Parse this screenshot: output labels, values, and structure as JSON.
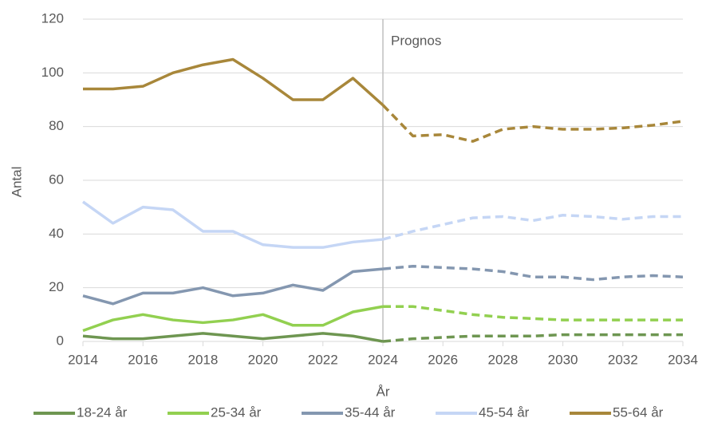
{
  "chart_data": {
    "type": "line",
    "x": [
      2014,
      2015,
      2016,
      2017,
      2018,
      2019,
      2020,
      2021,
      2022,
      2023,
      2024,
      2025,
      2026,
      2027,
      2028,
      2029,
      2030,
      2031,
      2032,
      2033,
      2034
    ],
    "xlim": [
      2014,
      2034
    ],
    "xticks": [
      2014,
      2016,
      2018,
      2020,
      2022,
      2024,
      2026,
      2028,
      2030,
      2032,
      2034
    ],
    "ylim": [
      0,
      120
    ],
    "yticks": [
      0,
      20,
      40,
      60,
      80,
      100,
      120
    ],
    "x_label": "År",
    "y_label": "Antal",
    "grid": true,
    "legend": "bottom",
    "annotation": {
      "text": "Prognos",
      "x": 2024
    },
    "series": [
      {
        "name": "18-24 år",
        "color": "#6e9651",
        "values": [
          2,
          1,
          1,
          2,
          3,
          2,
          1,
          2,
          3,
          2,
          0,
          1,
          1.5,
          2,
          2,
          2,
          2.5,
          2.5,
          2.5,
          2.5,
          2.5
        ]
      },
      {
        "name": "25-34 år",
        "color": "#92d050",
        "values": [
          4,
          8,
          10,
          8,
          7,
          8,
          10,
          6,
          6,
          11,
          13,
          13,
          11.5,
          10,
          9,
          8.5,
          8,
          8,
          8,
          8,
          8
        ]
      },
      {
        "name": "35-44 år",
        "color": "#8497b0",
        "values": [
          17,
          14,
          18,
          18,
          20,
          17,
          18,
          21,
          19,
          26,
          27,
          28,
          27.5,
          27,
          26,
          24,
          24,
          23,
          24,
          24.5,
          24
        ]
      },
      {
        "name": "45-54 år",
        "color": "#c5d6f5",
        "values": [
          52,
          44,
          50,
          49,
          41,
          41,
          36,
          35,
          35,
          37,
          38,
          41,
          43.5,
          46,
          46.5,
          45,
          47,
          46.5,
          45.5,
          46.5,
          46.5
        ]
      },
      {
        "name": "55-64 år",
        "color": "#a8873a",
        "values": [
          94,
          94,
          95,
          100,
          103,
          105,
          98,
          90,
          90,
          98,
          88,
          76.5,
          77,
          74.5,
          79,
          80,
          79,
          79,
          79.5,
          80.5,
          82
        ]
      }
    ]
  }
}
